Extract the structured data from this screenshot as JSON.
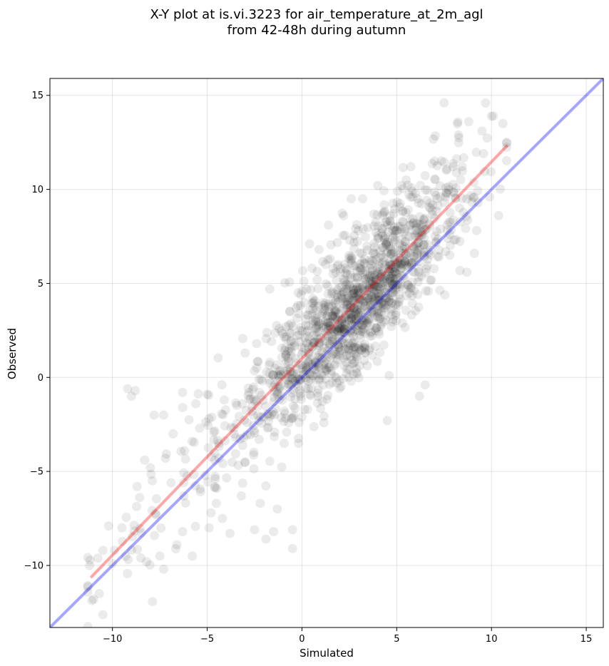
{
  "chart_data": {
    "type": "scatter",
    "title": "X-Y plot at is.vi.3223 for air_temperature_at_2m_agl",
    "subtitle": "from 42-48h during autumn",
    "xlabel": "Simulated",
    "ylabel": "Observed",
    "xlim": [
      -13.3,
      15.9
    ],
    "ylim": [
      -13.3,
      15.9
    ],
    "xticks": [
      -10,
      -5,
      0,
      5,
      10,
      15
    ],
    "yticks": [
      -10,
      -5,
      0,
      5,
      10,
      15
    ],
    "xtick_labels": [
      "−10",
      "−5",
      "0",
      "5",
      "10",
      "15"
    ],
    "ytick_labels": [
      "−10",
      "−5",
      "0",
      "5",
      "10",
      "15"
    ],
    "grid": true,
    "point_color": "#000000",
    "point_opacity": 0.08,
    "point_count": 1500,
    "identity_line": {
      "color": "#0000ff",
      "x": [
        -13.3,
        15.9
      ],
      "y": [
        -13.3,
        15.9
      ]
    },
    "regression_line": {
      "color": "#ff0000",
      "x": [
        -11.1,
        10.8
      ],
      "y": [
        -10.6,
        12.3
      ]
    },
    "sample_points": [
      [
        -11.2,
        -10.0
      ],
      [
        -11.0,
        -11.8
      ],
      [
        -10.7,
        -11.5
      ],
      [
        -10.5,
        -9.2
      ],
      [
        -10.2,
        -7.9
      ],
      [
        -10.0,
        -9.9
      ],
      [
        -9.9,
        -9.2
      ],
      [
        -9.5,
        -8.0
      ],
      [
        -9.2,
        -0.6
      ],
      [
        -9.0,
        -1.0
      ],
      [
        -8.8,
        -0.7
      ],
      [
        -8.7,
        -5.8
      ],
      [
        -8.5,
        -9.6
      ],
      [
        -8.3,
        -4.4
      ],
      [
        -8.2,
        -9.8
      ],
      [
        -8.0,
        -4.8
      ],
      [
        -7.9,
        -5.5
      ],
      [
        -7.8,
        -2.0
      ],
      [
        -7.7,
        -7.3
      ],
      [
        -7.5,
        -9.5
      ],
      [
        -7.3,
        -10.2
      ],
      [
        -7.3,
        -2.0
      ],
      [
        -7.2,
        -4.3
      ],
      [
        -6.8,
        -3.0
      ],
      [
        -6.6,
        -8.9
      ],
      [
        -6.3,
        -0.8
      ],
      [
        -6.3,
        -1.6
      ],
      [
        -6.2,
        -3.9
      ],
      [
        -6.3,
        -8.2
      ],
      [
        -5.8,
        -3.4
      ],
      [
        -5.6,
        -1.4
      ],
      [
        -5.4,
        -2.7
      ],
      [
        -5.0,
        -0.9
      ],
      [
        -4.9,
        -8.0
      ],
      [
        -4.8,
        -7.2
      ],
      [
        -4.5,
        -5.9
      ],
      [
        -4.2,
        -7.5
      ],
      [
        -4.1,
        -1.2
      ],
      [
        -3.8,
        -8.3
      ],
      [
        -3.5,
        -3.2
      ],
      [
        -3.2,
        -6.3
      ],
      [
        -3.0,
        -4.5
      ],
      [
        -3.0,
        1.3
      ],
      [
        -2.9,
        -2.4
      ],
      [
        -2.5,
        -8.1
      ],
      [
        -2.4,
        1.8
      ],
      [
        -2.2,
        -6.7
      ],
      [
        -1.9,
        -8.6
      ],
      [
        -1.7,
        4.7
      ],
      [
        -1.5,
        -8.2
      ],
      [
        -1.3,
        -7.0
      ],
      [
        -1.2,
        2.6
      ],
      [
        -0.5,
        -8.1
      ],
      [
        -0.5,
        -9.1
      ],
      [
        -0.2,
        4.5
      ],
      [
        0.3,
        -1.7
      ],
      [
        0.4,
        7.1
      ],
      [
        0.9,
        6.8
      ],
      [
        1.4,
        8.1
      ],
      [
        2.2,
        8.6
      ],
      [
        2.6,
        9.5
      ],
      [
        3.2,
        9.5
      ],
      [
        4.0,
        10.2
      ],
      [
        4.6,
        0.1
      ],
      [
        4.5,
        -2.3
      ],
      [
        5.0,
        5.5
      ],
      [
        5.5,
        10.5
      ],
      [
        6.0,
        9.8
      ],
      [
        6.2,
        -1.0
      ],
      [
        6.5,
        -0.4
      ],
      [
        7.0,
        11.5
      ],
      [
        7.5,
        14.6
      ],
      [
        7.8,
        6.5
      ],
      [
        8.7,
        5.6
      ],
      [
        8.8,
        13.6
      ],
      [
        9.5,
        13.1
      ],
      [
        10.1,
        13.9
      ],
      [
        10.6,
        13.5
      ],
      [
        10.8,
        12.5
      ],
      [
        9.9,
        9.6
      ],
      [
        9.1,
        6.6
      ]
    ]
  }
}
